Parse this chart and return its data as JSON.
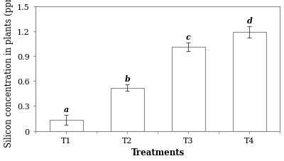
{
  "categories": [
    "T1",
    "T2",
    "T3",
    "T4"
  ],
  "values": [
    0.13,
    0.52,
    1.01,
    1.19
  ],
  "errors": [
    0.06,
    0.04,
    0.05,
    0.07
  ],
  "letters": [
    "a",
    "b",
    "c",
    "d"
  ],
  "bar_color": "#ffffff",
  "bar_edgecolor": "#888888",
  "error_color": "#555555",
  "xlabel": "Treatments",
  "ylabel": "Silicon concentration in plants (ppm)",
  "ylim": [
    0,
    1.5
  ],
  "yticks": [
    0,
    0.3,
    0.6,
    0.9,
    1.2,
    1.5
  ],
  "bar_width": 0.55,
  "letter_fontsize": 8,
  "axis_label_fontsize": 8.5,
  "tick_fontsize": 8,
  "background_color": "#ffffff",
  "figwidth": 4.0,
  "figheight": 2.28,
  "dpi": 100
}
